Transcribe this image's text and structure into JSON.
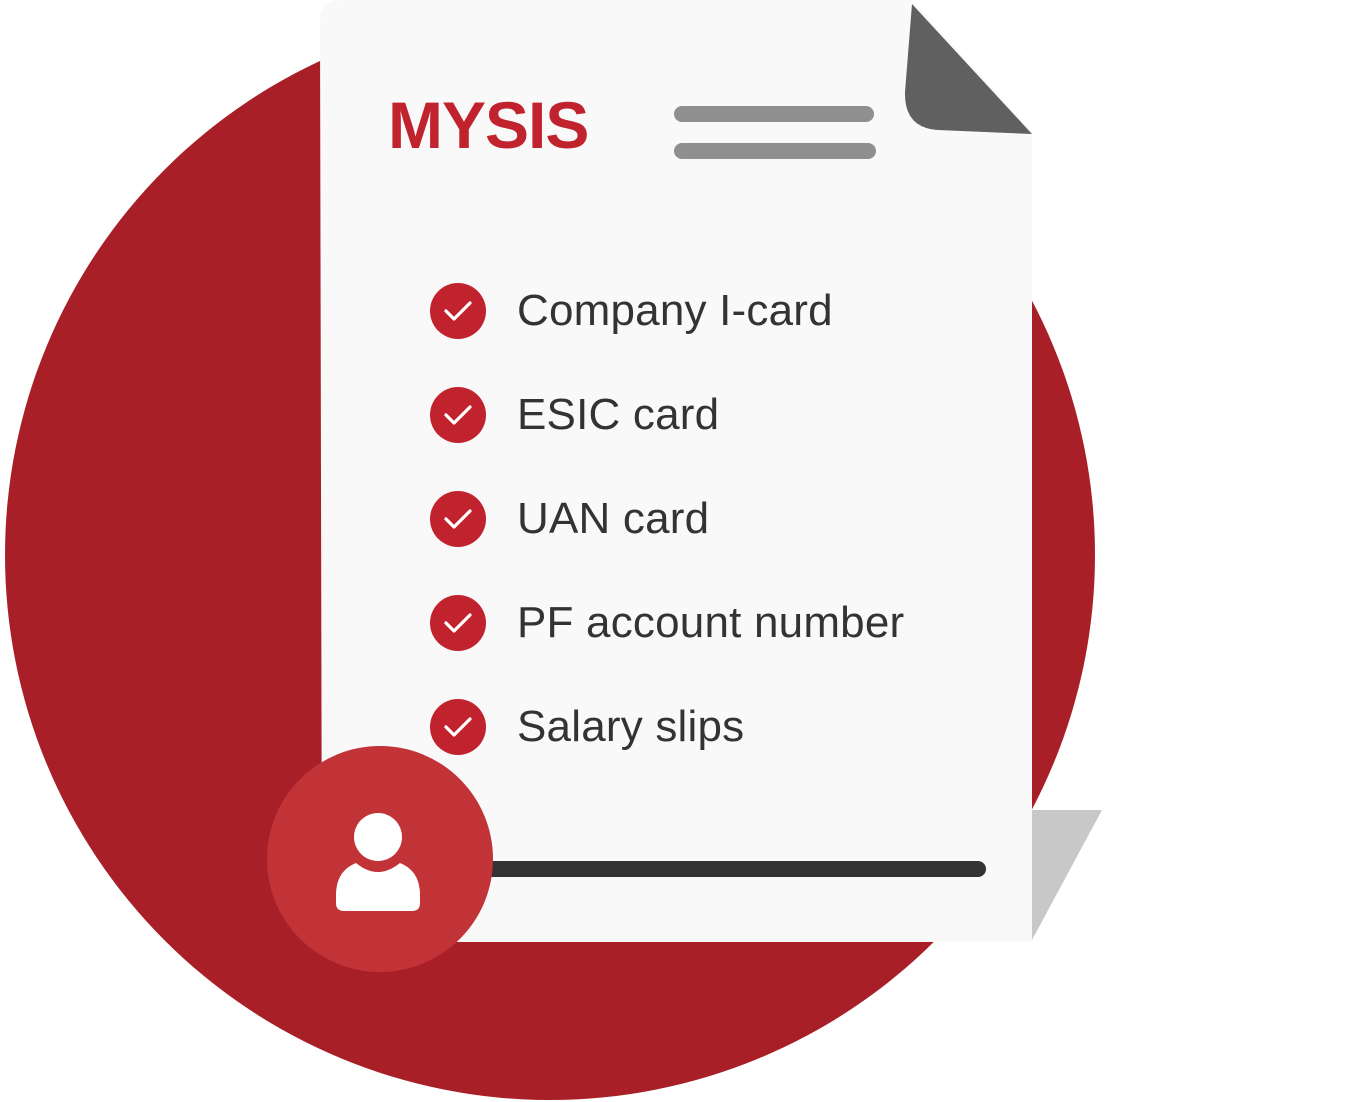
{
  "brand": {
    "name": "MYSIS",
    "color": "#c0232e"
  },
  "colors": {
    "background_circle": "#a91f28",
    "paper": "#f9f9f9",
    "fold": "#606060",
    "text": "#333333",
    "avatar": "#c13337"
  },
  "checklist": {
    "items": [
      {
        "label": "Company I-card",
        "icon": "check-circle-icon"
      },
      {
        "label": "ESIC card",
        "icon": "check-circle-icon"
      },
      {
        "label": "UAN card",
        "icon": "check-circle-icon"
      },
      {
        "label": "PF account number",
        "icon": "check-circle-icon"
      },
      {
        "label": "Salary slips",
        "icon": "check-circle-icon"
      }
    ]
  },
  "avatar": {
    "icon": "user-icon"
  }
}
